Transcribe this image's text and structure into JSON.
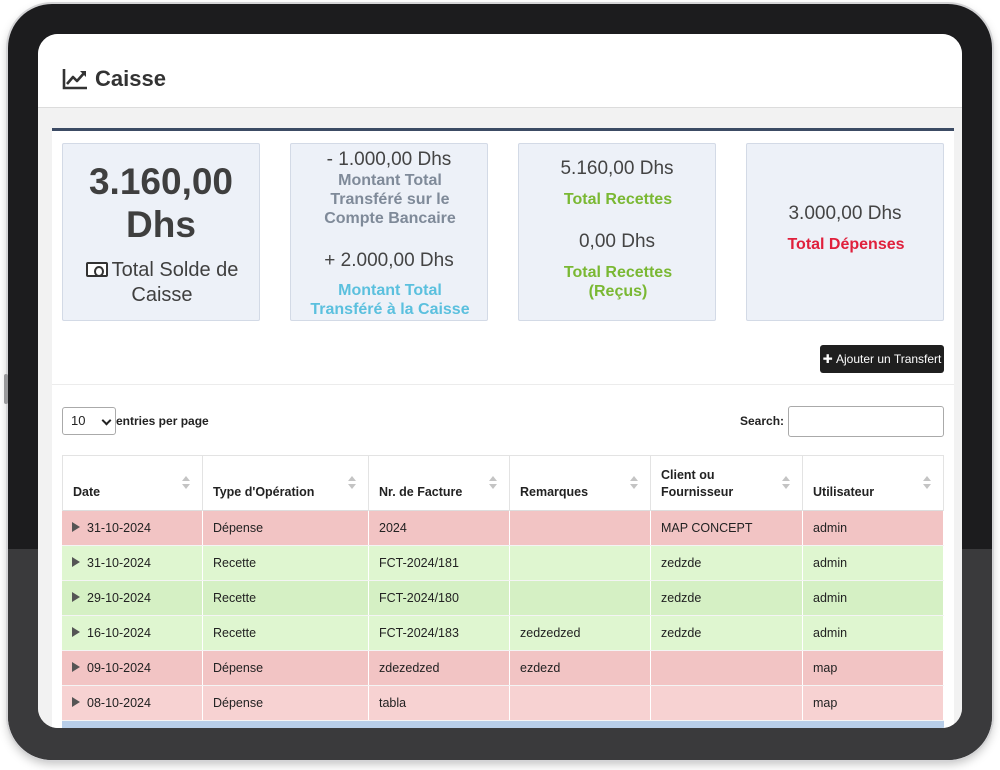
{
  "header": {
    "title": "Caisse",
    "icon": "line-chart-icon"
  },
  "stats": {
    "solde": {
      "amount": "3.160,00 Dhs",
      "label": "Total Solde de Caisse",
      "icon": "money-bill-icon"
    },
    "transfers": {
      "to_bank_amount": "- 1.000,00 Dhs",
      "to_bank_label": "Montant Total Transféré sur le Compte Bancaire",
      "to_cash_amount": "+ 2.000,00 Dhs",
      "to_cash_label": "Montant Total Transféré à la Caisse"
    },
    "recettes": {
      "total_amount": "5.160,00 Dhs",
      "total_label": "Total Recettes",
      "recus_amount": "0,00 Dhs",
      "recus_label": "Total Recettes (Reçus)"
    },
    "depenses": {
      "amount": "3.000,00 Dhs",
      "label": "Total Dépenses"
    }
  },
  "toolbar": {
    "add_transfer": "Ajouter un Transfert"
  },
  "table_controls": {
    "entries_value": "10",
    "entries_text": "entries per page",
    "search_label": "Search:",
    "search_value": ""
  },
  "table": {
    "columns": [
      "Date",
      "Type d'Opération",
      "Nr. de Facture",
      "Remarques",
      "Client ou Fournisseur",
      "Utilisateur"
    ],
    "rows": [
      {
        "date": "31-10-2024",
        "type": "Dépense",
        "facture": "2024",
        "remarques": "",
        "client": "MAP CONCEPT",
        "user": "admin"
      },
      {
        "date": "31-10-2024",
        "type": "Recette",
        "facture": "FCT-2024/181",
        "remarques": "",
        "client": "zedzde",
        "user": "admin"
      },
      {
        "date": "29-10-2024",
        "type": "Recette",
        "facture": "FCT-2024/180",
        "remarques": "",
        "client": "zedzde",
        "user": "admin"
      },
      {
        "date": "16-10-2024",
        "type": "Recette",
        "facture": "FCT-2024/183",
        "remarques": "zedzedzed",
        "client": "zedzde",
        "user": "admin"
      },
      {
        "date": "09-10-2024",
        "type": "Dépense",
        "facture": "zdezedzed",
        "remarques": "ezdezd",
        "client": "",
        "user": "map"
      },
      {
        "date": "08-10-2024",
        "type": "Dépense",
        "facture": "tabla",
        "remarques": "",
        "client": "",
        "user": "map"
      }
    ]
  },
  "colors": {
    "recette": "#dff6d0",
    "depense": "#f2c4c4",
    "accent_green": "#7ab833",
    "accent_red": "#e0203c",
    "accent_blue": "#5bc0de"
  }
}
